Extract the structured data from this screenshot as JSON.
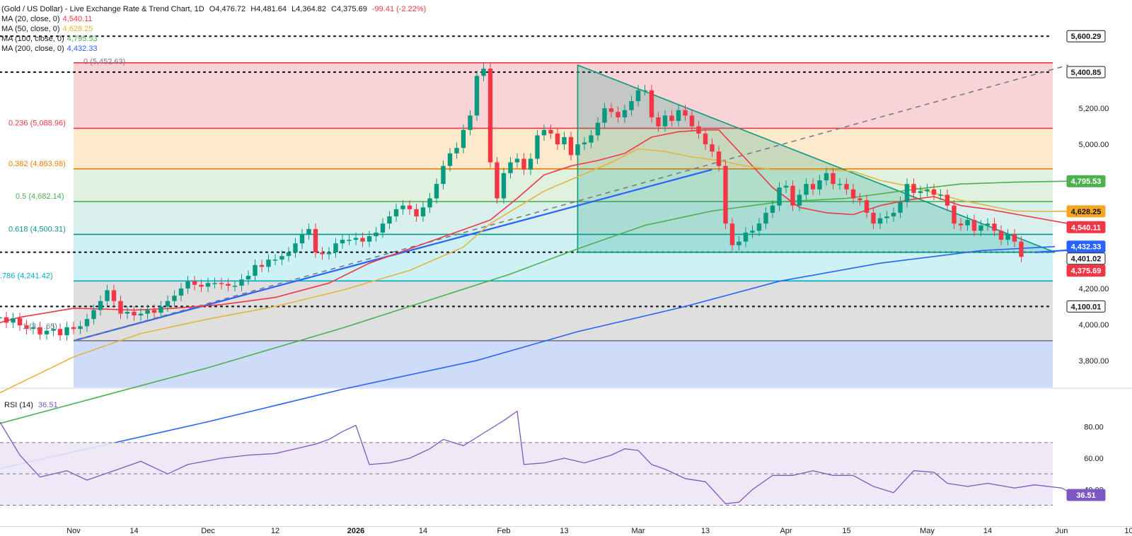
{
  "header": {
    "title": "(Gold / US Dollar) - Live Exchange Rate & Trend Chart, 1D",
    "open": "O4,476.72",
    "high": "H4,481.64",
    "low": "L4,364.82",
    "close": "C4,375.69",
    "change": "-99.41 (-2.22%)",
    "change_color": "#f23645",
    "ma_rows": [
      {
        "label": "MA (20, close, 0)",
        "value": "4,540.11",
        "color": "#f23645"
      },
      {
        "label": "MA (50, close, 0)",
        "value": "4,628.25",
        "color": "#e5b43c"
      },
      {
        "label": "MA (100, close, 0)",
        "value": "4,795.53",
        "color": "#4caf50"
      },
      {
        "label": "MA (200, close, 0)",
        "value": "4,432.33",
        "color": "#2962ff"
      }
    ]
  },
  "rsi_header": {
    "label": "RSI (14)",
    "value": "36.51",
    "color": "#7e57c2"
  },
  "fib_labels": [
    {
      "text": "0.236 (5,088.96)",
      "color": "#f23645"
    },
    {
      "text": "0.382 (4,863.98)",
      "color": "#f57c00"
    },
    {
      "text": "0.5 (4,682.14)",
      "color": "#4caf50"
    },
    {
      "text": "0.618 (4,500.31)",
      "color": "#089981"
    },
    {
      "text": ".786 (4,241.42)",
      "color": "#00acc1"
    },
    {
      "text": "1 (3,…65)",
      "color": "#787b86"
    },
    {
      "text": "0 (5,452.63)",
      "color": "#787b86"
    }
  ],
  "price_tags": [
    {
      "text": "5,600.29",
      "bg": "#ffffff",
      "fg": "#131722",
      "border": "#131722"
    },
    {
      "text": "5,400.85",
      "bg": "#ffffff",
      "fg": "#131722",
      "border": "#131722"
    },
    {
      "text": "4,795.53",
      "bg": "#4caf50",
      "fg": "#ffffff",
      "border": "#4caf50"
    },
    {
      "text": "4,628.25",
      "bg": "#f5a623",
      "fg": "#131722",
      "border": "#f5a623"
    },
    {
      "text": "4,540.11",
      "bg": "#f23645",
      "fg": "#ffffff",
      "border": "#f23645"
    },
    {
      "text": "4,432.33",
      "bg": "#2962ff",
      "fg": "#ffffff",
      "border": "#2962ff"
    },
    {
      "text": "4,401.02",
      "bg": "#ffffff",
      "fg": "#131722",
      "border": "#131722"
    },
    {
      "text": "4,375.69",
      "bg": "#f23645",
      "fg": "#ffffff",
      "border": "#f23645"
    },
    {
      "text": "4,100.01",
      "bg": "#ffffff",
      "fg": "#131722",
      "border": "#131722"
    },
    {
      "text": "36.51",
      "bg": "#7e57c2",
      "fg": "#ffffff",
      "border": "#7e57c2"
    }
  ],
  "chart_data": {
    "type": "candlestick",
    "y_axis": {
      "ticks": [
        3800,
        4000,
        4200,
        5000,
        5200
      ],
      "tick_labels": [
        "3,800.00",
        "4,000.00",
        "4,200.00",
        "5,000.00",
        "5,200.00"
      ],
      "range": [
        3650,
        5660
      ]
    },
    "rsi_axis": {
      "ticks": [
        40,
        60,
        80
      ],
      "tick_labels": [
        "40.00",
        "60.00",
        "80.00"
      ],
      "bands": [
        30,
        50,
        70
      ],
      "range": [
        23,
        97
      ]
    },
    "x_axis": {
      "labels": [
        "Nov",
        "14",
        "Dec",
        "12",
        "2026",
        "14",
        "Feb",
        "13",
        "Mar",
        "13",
        "Apr",
        "15",
        "May",
        "14",
        "Jun",
        "10"
      ],
      "label_bars": [
        0,
        9,
        20,
        30,
        42,
        52,
        64,
        73,
        84,
        94,
        106,
        115,
        127,
        136,
        147,
        157
      ]
    },
    "candles": {
      "count": 153,
      "first_bar": -11,
      "open_first": 4040,
      "closes": [
        4040,
        4010,
        4035,
        3995,
        3975,
        3985,
        3945,
        3965,
        3975,
        3940,
        3985,
        3975,
        3990,
        4030,
        4080,
        4130,
        4190,
        4130,
        4060,
        4070,
        4050,
        4060,
        4080,
        4065,
        4100,
        4130,
        4160,
        4200,
        4240,
        4220,
        4210,
        4230,
        4230,
        4225,
        4215,
        4215,
        4250,
        4270,
        4330,
        4320,
        4360,
        4360,
        4380,
        4400,
        4450,
        4500,
        4530,
        4400,
        4390,
        4400,
        4450,
        4470,
        4470,
        4480,
        4460,
        4490,
        4510,
        4560,
        4600,
        4640,
        4660,
        4640,
        4600,
        4650,
        4700,
        4780,
        4880,
        4950,
        4980,
        5080,
        5160,
        5380,
        5420,
        4900,
        4700,
        4840,
        4900,
        4920,
        4860,
        4920,
        5050,
        5080,
        5060,
        5000,
        5040,
        4940,
        5000,
        5010,
        5050,
        5120,
        5200,
        5180,
        5150,
        5190,
        5240,
        5300,
        5300,
        5150,
        5100,
        5160,
        5130,
        5190,
        5160,
        5100,
        5060,
        5000,
        4960,
        4880,
        4560,
        4440,
        4460,
        4510,
        4520,
        4560,
        4620,
        4660,
        4760,
        4770,
        4660,
        4720,
        4780,
        4750,
        4800,
        4840,
        4780,
        4780,
        4750,
        4700,
        4690,
        4620,
        4560,
        4590,
        4600,
        4620,
        4680,
        4780,
        4730,
        4740,
        4750,
        4720,
        4720,
        4660,
        4560,
        4550,
        4580,
        4520,
        4550,
        4560,
        4520,
        4470,
        4500,
        4460,
        4375.69
      ],
      "wick": 30
    },
    "moving_averages": [
      {
        "name": "MA (20, close, 0)",
        "value": 4540.11,
        "color": "#f23645",
        "points": [
          [
            -11,
            4010
          ],
          [
            -8,
            4040
          ],
          [
            0,
            4090
          ],
          [
            9,
            4080
          ],
          [
            15,
            4090
          ],
          [
            22,
            4110
          ],
          [
            30,
            4150
          ],
          [
            38,
            4230
          ],
          [
            44,
            4340
          ],
          [
            50,
            4420
          ],
          [
            56,
            4500
          ],
          [
            62,
            4580
          ],
          [
            66,
            4700
          ],
          [
            70,
            4830
          ],
          [
            74,
            4880
          ],
          [
            78,
            4910
          ],
          [
            82,
            4950
          ],
          [
            86,
            5040
          ],
          [
            90,
            5070
          ],
          [
            94,
            5080
          ],
          [
            96,
            5080
          ],
          [
            100,
            4920
          ],
          [
            104,
            4760
          ],
          [
            108,
            4650
          ],
          [
            112,
            4620
          ],
          [
            116,
            4610
          ],
          [
            120,
            4660
          ],
          [
            124,
            4690
          ],
          [
            128,
            4710
          ],
          [
            132,
            4660
          ],
          [
            136,
            4640
          ],
          [
            142,
            4600
          ],
          [
            148,
            4560
          ],
          [
            153,
            4540.11
          ]
        ]
      },
      {
        "name": "MA (50, close, 0)",
        "value": 4628.25,
        "color": "#e5b43c",
        "points": [
          [
            -11,
            3620
          ],
          [
            0,
            3820
          ],
          [
            10,
            3950
          ],
          [
            20,
            4030
          ],
          [
            30,
            4100
          ],
          [
            40,
            4190
          ],
          [
            50,
            4300
          ],
          [
            58,
            4430
          ],
          [
            62,
            4560
          ],
          [
            70,
            4740
          ],
          [
            80,
            4900
          ],
          [
            84,
            4975
          ],
          [
            88,
            4960
          ],
          [
            92,
            4930
          ],
          [
            96,
            4910
          ],
          [
            100,
            4880
          ],
          [
            104,
            4860
          ],
          [
            108,
            4860
          ],
          [
            112,
            4860
          ],
          [
            116,
            4850
          ],
          [
            120,
            4800
          ],
          [
            124,
            4770
          ],
          [
            128,
            4730
          ],
          [
            132,
            4690
          ],
          [
            136,
            4660
          ],
          [
            140,
            4630
          ],
          [
            144,
            4628
          ],
          [
            148,
            4628.25
          ]
        ]
      },
      {
        "name": "MA (100, close, 0)",
        "value": 4795.53,
        "color": "#4caf50",
        "points": [
          [
            -11,
            3450
          ],
          [
            0,
            3560
          ],
          [
            20,
            3760
          ],
          [
            40,
            3980
          ],
          [
            55,
            4160
          ],
          [
            65,
            4280
          ],
          [
            75,
            4420
          ],
          [
            85,
            4550
          ],
          [
            95,
            4630
          ],
          [
            105,
            4680
          ],
          [
            115,
            4700
          ],
          [
            125,
            4750
          ],
          [
            132,
            4780
          ],
          [
            140,
            4790
          ],
          [
            148,
            4795.53
          ]
        ]
      },
      {
        "name": "MA (200, close, 0)",
        "value": 4432.33,
        "color": "#2962ff",
        "points": [
          [
            -11,
            3200
          ],
          [
            20,
            3460
          ],
          [
            40,
            3640
          ],
          [
            60,
            3800
          ],
          [
            75,
            3960
          ],
          [
            91,
            4100
          ],
          [
            105,
            4240
          ],
          [
            120,
            4340
          ],
          [
            135,
            4410
          ],
          [
            146,
            4432.33
          ]
        ]
      }
    ],
    "fibonacci": {
      "from_bar": 0,
      "to_bar": 147,
      "levels": [
        {
          "ratio": 0,
          "price": 5452.63,
          "color": "#f23645"
        },
        {
          "ratio": 0.236,
          "price": 5088.96,
          "color": "#f23645"
        },
        {
          "ratio": 0.382,
          "price": 4863.98,
          "color": "#f57c00"
        },
        {
          "ratio": 0.5,
          "price": 4682.14,
          "color": "#4caf50"
        },
        {
          "ratio": 0.618,
          "price": 4500.31,
          "color": "#089981"
        },
        {
          "ratio": 0.786,
          "price": 4241.42,
          "color": "#00acc1"
        },
        {
          "ratio": 1,
          "price": 3910,
          "color": "#787b86"
        }
      ]
    },
    "horizontal_levels": [
      5600.29,
      5400.85,
      4401.02,
      4100.01
    ],
    "trendlines": [
      {
        "from": [
          0,
          3910
        ],
        "to": [
          95,
          4860
        ],
        "color": "#2962ff"
      },
      {
        "from": [
          0,
          3910
        ],
        "to": [
          148,
          5440
        ],
        "color": "#787b86",
        "dashed": true
      },
      {
        "from": [
          143,
          4400
        ],
        "to": [
          151,
          4420
        ],
        "color": "#2962ff"
      }
    ],
    "triangle": {
      "points": [
        [
          75,
          5440
        ],
        [
          75,
          4401.02
        ],
        [
          146,
          4401.02
        ]
      ],
      "color": "#089981"
    },
    "rsi": {
      "name": "RSI (14)",
      "value": 36.51,
      "points": [
        [
          -11,
          83
        ],
        [
          -8,
          62
        ],
        [
          -5,
          48
        ],
        [
          -1,
          52
        ],
        [
          2,
          46
        ],
        [
          6,
          52
        ],
        [
          10,
          58
        ],
        [
          14,
          50
        ],
        [
          17,
          56
        ],
        [
          22,
          60
        ],
        [
          26,
          62
        ],
        [
          30,
          63
        ],
        [
          33,
          66
        ],
        [
          36,
          69
        ],
        [
          38,
          72
        ],
        [
          40,
          77
        ],
        [
          42,
          81
        ],
        [
          44,
          56
        ],
        [
          47,
          57
        ],
        [
          50,
          60
        ],
        [
          53,
          66
        ],
        [
          55,
          72
        ],
        [
          58,
          68
        ],
        [
          61,
          76
        ],
        [
          64,
          84
        ],
        [
          66,
          90
        ],
        [
          67,
          56
        ],
        [
          70,
          57
        ],
        [
          73,
          60
        ],
        [
          76,
          57
        ],
        [
          80,
          62
        ],
        [
          82,
          66
        ],
        [
          84,
          65
        ],
        [
          86,
          56
        ],
        [
          88,
          53
        ],
        [
          91,
          47
        ],
        [
          94,
          45
        ],
        [
          97,
          31
        ],
        [
          99,
          32
        ],
        [
          101,
          40
        ],
        [
          104,
          49
        ],
        [
          107,
          49
        ],
        [
          110,
          52
        ],
        [
          113,
          49
        ],
        [
          116,
          49
        ],
        [
          119,
          42
        ],
        [
          122,
          38
        ],
        [
          125,
          52
        ],
        [
          128,
          51
        ],
        [
          130,
          44
        ],
        [
          133,
          42
        ],
        [
          136,
          44
        ],
        [
          140,
          41
        ],
        [
          143,
          43
        ],
        [
          147,
          41
        ],
        [
          149,
          36.51
        ]
      ]
    }
  }
}
